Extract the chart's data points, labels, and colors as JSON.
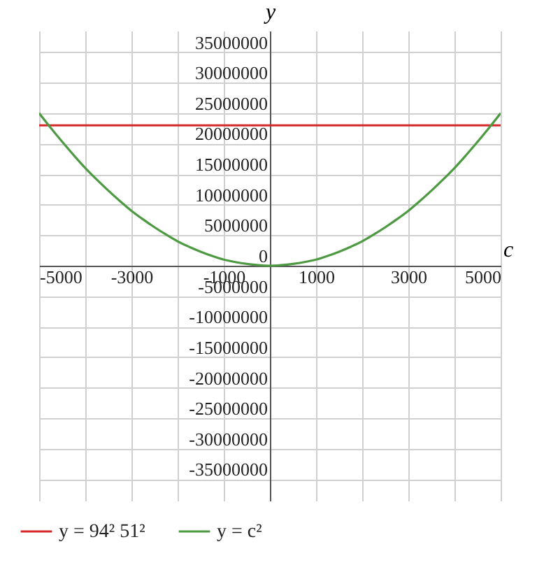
{
  "chart_data": {
    "type": "line",
    "xlabel": "c",
    "ylabel": "y",
    "legend": "bottom left",
    "grid": true,
    "xlim": [
      -5000,
      5000
    ],
    "ylim": [
      -38500000,
      38500000
    ],
    "xticks": [
      -5000,
      {
        "value": -4000,
        "label": null
      },
      -3000,
      {
        "value": -2000,
        "label": null
      },
      -1000,
      {
        "value": 0,
        "label": null
      },
      1000,
      {
        "value": 2000,
        "label": null
      },
      3000,
      {
        "value": 4000,
        "label": null
      },
      5000
    ],
    "yticks": [
      -35000000,
      -30000000,
      -25000000,
      -20000000,
      -15000000,
      -10000000,
      -5000000,
      0,
      5000000,
      10000000,
      15000000,
      20000000,
      25000000,
      30000000,
      35000000
    ],
    "series": [
      {
        "name": "y = 94² 51²",
        "color": "#d62728",
        "x": [
          -5000,
          5000
        ],
        "values": [
          23000000,
          23000000
        ]
      },
      {
        "name": "y = c²",
        "color": "#4e9a43",
        "x": [
          -5000,
          -4750,
          -4500,
          -4250,
          -4000,
          -3750,
          -3500,
          -3250,
          -3000,
          -2750,
          -2500,
          -2250,
          -2000,
          -1750,
          -1500,
          -1250,
          -1000,
          -750,
          -500,
          -250,
          0,
          250,
          500,
          750,
          1000,
          1250,
          1500,
          1750,
          2000,
          2250,
          2500,
          2750,
          3000,
          3250,
          3500,
          3750,
          4000,
          4250,
          4500,
          4750,
          5000
        ],
        "values": [
          25000000,
          22600000,
          20300000,
          18100000,
          16000000,
          14100000,
          12300000,
          10600000,
          9000000,
          7600000,
          6300000,
          5100000,
          4000000,
          3100000,
          2300000,
          1600000,
          1000000,
          600000,
          300000,
          100000,
          0,
          100000,
          300000,
          600000,
          1000000,
          1600000,
          2300000,
          3100000,
          4000000,
          5100000,
          6300000,
          7600000,
          9000000,
          10600000,
          12300000,
          14100000,
          16000000,
          18100000,
          20300000,
          22600000,
          25000000
        ]
      }
    ]
  }
}
